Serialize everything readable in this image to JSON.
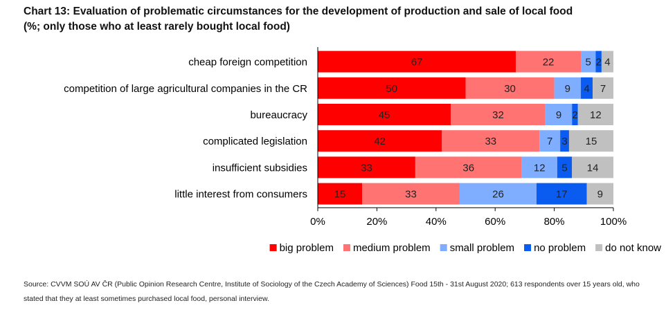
{
  "chart_data": {
    "type": "bar",
    "orientation": "horizontal",
    "stacked": true,
    "title": "Chart 13: Evaluation of problematic circumstances for the development of production and sale of local food",
    "subtitle": "(%; only those who at least rarely bought local food)",
    "categories": [
      "cheap foreign competition",
      "competition of large agricultural companies in the CR",
      "bureaucracy",
      "complicated legislation",
      "insufficient subsidies",
      "little interest from consumers"
    ],
    "series": [
      {
        "name": "big problem",
        "color": "#ff0000",
        "values": [
          67,
          50,
          45,
          42,
          33,
          15
        ]
      },
      {
        "name": "medium problem",
        "color": "#ff7373",
        "values": [
          22,
          30,
          32,
          33,
          36,
          33
        ]
      },
      {
        "name": "small problem",
        "color": "#7fadff",
        "values": [
          5,
          9,
          9,
          7,
          12,
          26
        ]
      },
      {
        "name": "no problem",
        "color": "#0a5cf0",
        "values": [
          2,
          4,
          2,
          3,
          5,
          17
        ]
      },
      {
        "name": "do not know",
        "color": "#c0c0c0",
        "values": [
          4,
          7,
          12,
          15,
          14,
          9
        ]
      }
    ],
    "xlim": [
      0,
      100
    ],
    "xticks": [
      "0%",
      "20%",
      "40%",
      "60%",
      "80%",
      "100%"
    ],
    "grid": false,
    "legend": "bottom"
  },
  "source": "Source: CVVM SOÚ AV ČR (Public Opinion Research Centre, Institute of Sociology of the Czech Academy of Sciences) Food 15th - 31st August 2020; 613 respondents over 15 years old, who stated that they at least sometimes purchased local food, personal interview."
}
